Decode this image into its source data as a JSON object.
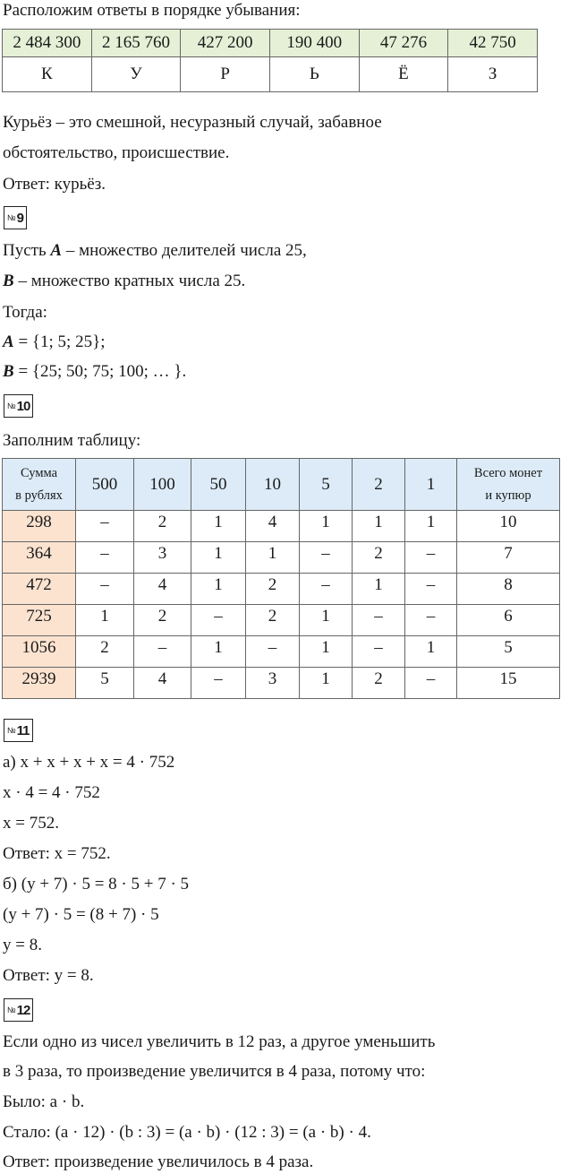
{
  "intro": "Расположим ответы в порядке убывания:",
  "table1": {
    "numbers": [
      "2 484 300",
      "2 165 760",
      "427 200",
      "190 400",
      "47 276",
      "42 750"
    ],
    "letters": [
      "К",
      "У",
      "Р",
      "Ь",
      "Ё",
      "З"
    ]
  },
  "p8": {
    "line1": "Курьёз – это смешной, несуразный случай, забавное",
    "line2": "обстоятельство, происшествие.",
    "answer": "Ответ: курьёз."
  },
  "p9": {
    "no": "№",
    "num": "9",
    "l1a": "Пусть ",
    "l1v": "A",
    "l1b": " – множество делителей числа 25,",
    "l2v": "B",
    "l2b": " – множество кратных числа 25.",
    "l3": "Тогда:",
    "l4v": "A",
    "l4b": " = {1; 5; 25};",
    "l5v": "B",
    "l5b": " = {25; 50; 75; 100; … }."
  },
  "p10": {
    "no": "№",
    "num": "10",
    "intro": "Заполним таблицу:",
    "header": [
      "Сумма\nв рублях",
      "500",
      "100",
      "50",
      "10",
      "5",
      "2",
      "1",
      "Всего монет\nи купюр"
    ],
    "header_sum_1": "Сумма",
    "header_sum_2": "в рублях",
    "header_total_1": "Всего монет",
    "header_total_2": "и купюр",
    "rows": [
      [
        "298",
        "–",
        "2",
        "1",
        "4",
        "1",
        "1",
        "1",
        "10"
      ],
      [
        "364",
        "–",
        "3",
        "1",
        "1",
        "–",
        "2",
        "–",
        "7"
      ],
      [
        "472",
        "–",
        "4",
        "1",
        "2",
        "–",
        "1",
        "–",
        "8"
      ],
      [
        "725",
        "1",
        "2",
        "–",
        "2",
        "1",
        "–",
        "–",
        "6"
      ],
      [
        "1056",
        "2",
        "–",
        "1",
        "–",
        "1",
        "–",
        "1",
        "5"
      ],
      [
        "2939",
        "5",
        "4",
        "–",
        "3",
        "1",
        "2",
        "–",
        "15"
      ]
    ]
  },
  "p11": {
    "no": "№",
    "num": "11",
    "lines": [
      "а) x + x + x + x = 4 · 752",
      "x · 4 = 4 · 752",
      "x = 752.",
      "Ответ: x = 752.",
      "б) (y + 7) · 5 = 8 · 5 + 7 · 5",
      "(y + 7) · 5 = (8 + 7) · 5",
      "y = 8.",
      "Ответ: y = 8."
    ]
  },
  "p12": {
    "no": "№",
    "num": "12",
    "lines": [
      "Если одно из чисел увеличить в 12 раз, а другое уменьшить",
      "в 3 раза, то произведение увеличится в 4 раза, потому что:",
      "Было:  a · b.",
      "Стало:  (a · 12) · (b : 3) = (a · b) · (12 : 3) = (a · b) · 4.",
      "Ответ: произведение увеличилось в 4 раза."
    ]
  }
}
